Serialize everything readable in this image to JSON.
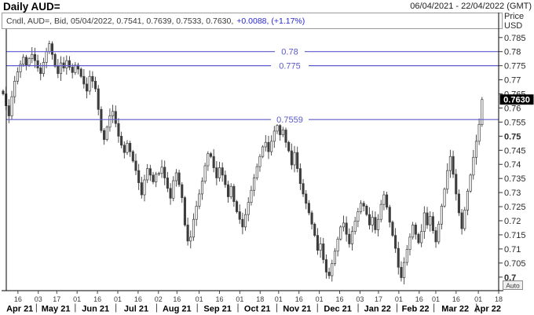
{
  "header": {
    "title": "Daily AUD=",
    "date_range": "06/04/2021 - 22/04/2022 (GMT)"
  },
  "legend": {
    "text": "Cndl, AUD=, Bid, 05/04/2022, 0.7541, 0.7639, 0.7533, 0.7630,",
    "change": "+0.0088, (+1.17%)"
  },
  "axis_right": {
    "title_line1": "Price",
    "title_line2": "USD",
    "last_price": "0.7630",
    "auto_label": "Auto",
    "bold_ticks": [
      "0.75",
      "0.7"
    ]
  },
  "colors": {
    "level_line": "#5c5ccb",
    "level_label": "#5b5bc8",
    "candle_stroke": "#3d3d3d",
    "candle_up_fill": "#ffffff",
    "candle_down_fill": "#3d3d3d",
    "axis_line": "#000000",
    "axis_text": "#2b2b2b",
    "tag_bg": "#000000",
    "tag_text": "#ffffff",
    "legend_border": "#9b9b9b"
  },
  "chart_data": {
    "type": "candlestick",
    "title": "Daily AUD=",
    "instrument": "AUD=",
    "interval": "Daily",
    "ylabel": "Price USD",
    "grid": false,
    "ylim": [
      0.6952,
      0.788
    ],
    "y_ticks": [
      0.785,
      0.78,
      0.775,
      0.77,
      0.765,
      0.76,
      0.755,
      0.75,
      0.745,
      0.74,
      0.735,
      0.73,
      0.725,
      0.72,
      0.715,
      0.71,
      0.705,
      0.7
    ],
    "levels": [
      {
        "price": 0.78,
        "label": "0.78"
      },
      {
        "price": 0.775,
        "label": "0.775"
      },
      {
        "price": 0.7559,
        "label": "0.7559"
      }
    ],
    "ohlc_last": {
      "date": "05/04/2022",
      "open": 0.7541,
      "high": 0.7639,
      "low": 0.7533,
      "close": 0.763,
      "change": "+0.0088",
      "change_pct": "+1.17%"
    },
    "x_axis": {
      "t_total": 268,
      "candle_t_max": 259,
      "day_ticks": [
        {
          "label": "16",
          "t": 8
        },
        {
          "label": "03",
          "t": 19
        },
        {
          "label": "17",
          "t": 29
        },
        {
          "label": "01",
          "t": 40
        },
        {
          "label": "16",
          "t": 51
        },
        {
          "label": "01",
          "t": 62
        },
        {
          "label": "16",
          "t": 73
        },
        {
          "label": "02",
          "t": 84
        },
        {
          "label": "16",
          "t": 94
        },
        {
          "label": "01",
          "t": 106
        },
        {
          "label": "16",
          "t": 117
        },
        {
          "label": "01",
          "t": 128
        },
        {
          "label": "18",
          "t": 139
        },
        {
          "label": "01",
          "t": 149
        },
        {
          "label": "16",
          "t": 160
        },
        {
          "label": "01",
          "t": 171
        },
        {
          "label": "16",
          "t": 182
        },
        {
          "label": "03",
          "t": 193
        },
        {
          "label": "17",
          "t": 203
        },
        {
          "label": "01",
          "t": 214
        },
        {
          "label": "16",
          "t": 225
        },
        {
          "label": "01",
          "t": 234
        },
        {
          "label": "16",
          "t": 245
        },
        {
          "label": "01",
          "t": 257
        },
        {
          "label": "18",
          "t": 268
        }
      ],
      "months": [
        {
          "label": "Apr 21",
          "t0": 0,
          "t1": 18
        },
        {
          "label": "May 21",
          "t0": 18,
          "t1": 39
        },
        {
          "label": "Jun 21",
          "t0": 39,
          "t1": 61
        },
        {
          "label": "Jul 21",
          "t0": 61,
          "t1": 83
        },
        {
          "label": "Aug 21",
          "t0": 83,
          "t1": 105
        },
        {
          "label": "Sep 21",
          "t0": 105,
          "t1": 127
        },
        {
          "label": "Oct 21",
          "t0": 127,
          "t1": 148
        },
        {
          "label": "Nov 21",
          "t0": 148,
          "t1": 170
        },
        {
          "label": "Dec 21",
          "t0": 170,
          "t1": 192
        },
        {
          "label": "Jan 22",
          "t0": 192,
          "t1": 213
        },
        {
          "label": "Feb 22",
          "t0": 213,
          "t1": 233
        },
        {
          "label": "Mar 22",
          "t0": 233,
          "t1": 256
        },
        {
          "label": "Apr 22",
          "t0": 256,
          "t1": 268
        }
      ]
    },
    "closes": [
      0.765,
      0.7608,
      0.7572,
      0.764,
      0.7695,
      0.7728,
      0.7755,
      0.778,
      0.7752,
      0.7775,
      0.779,
      0.7768,
      0.7742,
      0.7722,
      0.7762,
      0.78,
      0.7828,
      0.779,
      0.7748,
      0.7722,
      0.776,
      0.7742,
      0.7768,
      0.7745,
      0.7726,
      0.7752,
      0.7738,
      0.7712,
      0.7685,
      0.766,
      0.7712,
      0.7695,
      0.7668,
      0.7595,
      0.752,
      0.7488,
      0.7532,
      0.7572,
      0.7588,
      0.7545,
      0.75,
      0.7468,
      0.7442,
      0.7475,
      0.7445,
      0.7412,
      0.7378,
      0.7335,
      0.7292,
      0.7345,
      0.7385,
      0.7362,
      0.7338,
      0.7365,
      0.7368,
      0.739,
      0.7352,
      0.7315,
      0.728,
      0.7342,
      0.737,
      0.7328,
      0.7282,
      0.7185,
      0.7128,
      0.7142,
      0.7205,
      0.7252,
      0.7295,
      0.734,
      0.7395,
      0.7438,
      0.7428,
      0.7388,
      0.7352,
      0.7388,
      0.7362,
      0.7328,
      0.7285,
      0.7322,
      0.7268,
      0.7232,
      0.7205,
      0.7178,
      0.7222,
      0.7265,
      0.7308,
      0.7352,
      0.7392,
      0.7428,
      0.7462,
      0.7478,
      0.7445,
      0.7482,
      0.7518,
      0.7538,
      0.7505,
      0.7522,
      0.7478,
      0.7448,
      0.7398,
      0.7442,
      0.7385,
      0.7332,
      0.7295,
      0.7262,
      0.7228,
      0.7188,
      0.7148,
      0.7095,
      0.7118,
      0.7062,
      0.7018,
      0.7005,
      0.7048,
      0.7092,
      0.7135,
      0.7178,
      0.7192,
      0.7152,
      0.7118,
      0.7162,
      0.7198,
      0.7232,
      0.7262,
      0.7252,
      0.7222,
      0.7185,
      0.7212,
      0.7168,
      0.7205,
      0.7258,
      0.7292,
      0.7248,
      0.7195,
      0.7148,
      0.7102,
      0.7035,
      0.6998,
      0.7052,
      0.7098,
      0.7142,
      0.7185,
      0.7152,
      0.7122,
      0.7162,
      0.7228,
      0.7185,
      0.7215,
      0.7165,
      0.7125,
      0.7188,
      0.7252,
      0.7312,
      0.7378,
      0.7428,
      0.7365,
      0.7295,
      0.7228,
      0.7172,
      0.7238,
      0.7305,
      0.7362,
      0.7425,
      0.7482,
      0.7542,
      0.763
    ]
  }
}
